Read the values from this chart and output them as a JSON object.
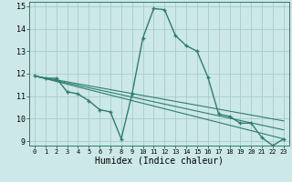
{
  "xlabel": "Humidex (Indice chaleur)",
  "ylabel": "",
  "background_color": "#cce8e8",
  "grid_color": "#aacccc",
  "line_color": "#2e7d6e",
  "xlim": [
    -0.5,
    23.5
  ],
  "ylim": [
    8.8,
    15.2
  ],
  "yticks": [
    9,
    10,
    11,
    12,
    13,
    14,
    15
  ],
  "xticks": [
    0,
    1,
    2,
    3,
    4,
    5,
    6,
    7,
    8,
    9,
    10,
    11,
    12,
    13,
    14,
    15,
    16,
    17,
    18,
    19,
    20,
    21,
    22,
    23
  ],
  "series1_x": [
    0,
    1,
    2,
    3,
    4,
    5,
    6,
    7,
    8,
    9,
    10,
    11,
    12,
    13,
    14,
    15,
    16,
    17,
    18,
    19,
    20,
    21,
    22,
    23
  ],
  "series1_y": [
    11.9,
    11.8,
    11.8,
    11.2,
    11.1,
    10.8,
    10.4,
    10.3,
    9.1,
    11.1,
    13.6,
    14.9,
    14.85,
    13.7,
    13.25,
    13.0,
    11.85,
    10.2,
    10.1,
    9.8,
    9.8,
    9.15,
    8.8,
    9.1
  ],
  "series2_x": [
    0,
    23
  ],
  "series2_y": [
    11.9,
    9.1
  ],
  "series3_x": [
    0,
    23
  ],
  "series3_y": [
    11.9,
    9.5
  ],
  "series4_x": [
    0,
    23
  ],
  "series4_y": [
    11.9,
    9.9
  ]
}
